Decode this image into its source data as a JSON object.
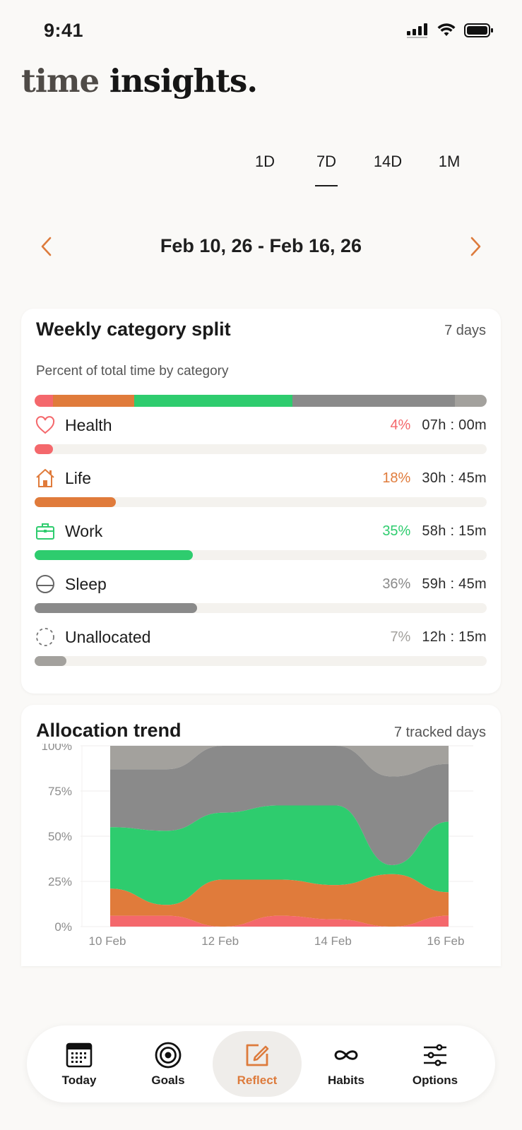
{
  "status": {
    "time": "9:41"
  },
  "title": {
    "light": "time",
    "dark": "insights."
  },
  "ranges": [
    "1D",
    "7D",
    "14D",
    "1M"
  ],
  "active_range": "7D",
  "date_range": "Feb 10, 26 - Feb 16, 26",
  "split_card": {
    "title": "Weekly category split",
    "meta": "7 days",
    "subtitle": "Percent of total time by category",
    "categories": [
      {
        "name": "Health",
        "percent_label": "4%",
        "duration": "07h : 00m",
        "fraction": 0.04,
        "color": "#f4686c",
        "icon": "heart-icon"
      },
      {
        "name": "Life",
        "percent_label": "18%",
        "duration": "30h : 45m",
        "fraction": 0.18,
        "color": "#e07b3b",
        "icon": "house-icon"
      },
      {
        "name": "Work",
        "percent_label": "35%",
        "duration": "58h : 15m",
        "fraction": 0.35,
        "color": "#2ecc6e",
        "icon": "briefcase-icon"
      },
      {
        "name": "Sleep",
        "percent_label": "36%",
        "duration": "59h : 45m",
        "fraction": 0.36,
        "color": "#8a8a8a",
        "icon": "moon-circle-icon"
      },
      {
        "name": "Unallocated",
        "percent_label": "7%",
        "duration": "12h : 15m",
        "fraction": 0.07,
        "color": "#a3a19d",
        "icon": "dashed-circle-icon"
      }
    ]
  },
  "trend_card": {
    "title": "Allocation trend",
    "meta": "7 tracked days"
  },
  "chart_data": {
    "type": "area",
    "stacked": true,
    "x": [
      "10 Feb",
      "11 Feb",
      "12 Feb",
      "13 Feb",
      "14 Feb",
      "15 Feb",
      "16 Feb"
    ],
    "x_tick_labels": [
      "10 Feb",
      "12 Feb",
      "14 Feb",
      "16 Feb"
    ],
    "y_tick_labels": [
      "0%",
      "25%",
      "50%",
      "75%",
      "100%"
    ],
    "ylim": [
      0,
      100
    ],
    "grid": true,
    "series": [
      {
        "name": "Health",
        "color": "#f4686c",
        "values": [
          6,
          6,
          0,
          6,
          4,
          0,
          6
        ]
      },
      {
        "name": "Life",
        "color": "#e07b3b",
        "values": [
          15,
          6,
          26,
          20,
          19,
          29,
          13
        ]
      },
      {
        "name": "Work",
        "color": "#2ecc6e",
        "values": [
          34,
          41,
          37,
          41,
          44,
          5,
          39
        ]
      },
      {
        "name": "Sleep",
        "color": "#8a8a8a",
        "values": [
          32,
          34,
          37,
          33,
          33,
          49,
          32
        ]
      },
      {
        "name": "Unallocated",
        "color": "#a3a19d",
        "values": [
          13,
          13,
          0,
          0,
          0,
          17,
          10
        ]
      }
    ]
  },
  "tabs": [
    {
      "label": "Today",
      "icon": "calendar-icon"
    },
    {
      "label": "Goals",
      "icon": "target-icon"
    },
    {
      "label": "Reflect",
      "icon": "edit-icon"
    },
    {
      "label": "Habits",
      "icon": "infinity-icon"
    },
    {
      "label": "Options",
      "icon": "sliders-icon"
    }
  ],
  "active_tab": "Reflect"
}
